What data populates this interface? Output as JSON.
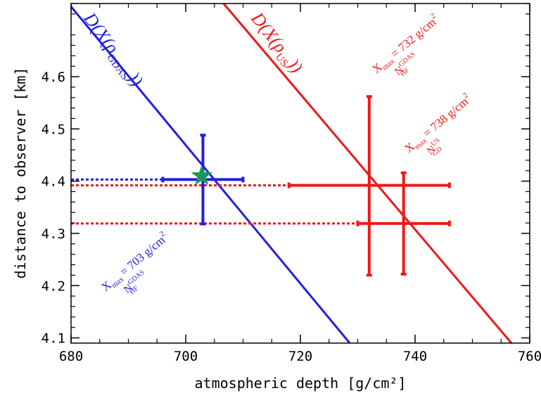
{
  "chart_data": {
    "type": "scatter",
    "title": "",
    "xlabel": "atmospheric depth [g/cm²]",
    "ylabel": "distance to observer [km]",
    "xlim": [
      680,
      760
    ],
    "ylim": [
      4.09,
      4.74
    ],
    "x_ticks": [
      680,
      700,
      720,
      740,
      760
    ],
    "x_tick_labels": [
      "680",
      "700",
      "720",
      "740",
      "760"
    ],
    "y_ticks": [
      4.1,
      4.2,
      4.3,
      4.4,
      4.5,
      4.6
    ],
    "y_tick_labels": [
      "4.1",
      "4.2",
      "4.3",
      "4.4",
      "4.5",
      "4.6"
    ],
    "grid": false,
    "colors": {
      "blue": "#2020e0",
      "red": "#f01818",
      "star": "#1a9a5a"
    },
    "lines": [
      {
        "name": "D(X(ρGDAS))",
        "color": "#2020e0",
        "x": [
          680,
          728.6
        ],
        "y": [
          4.734,
          4.09
        ]
      },
      {
        "name": "D(X(ρUS))",
        "color": "#f01818",
        "x": [
          706.6,
          756.8
        ],
        "y": [
          4.74,
          4.09
        ]
      }
    ],
    "series": [
      {
        "color": "#2020e0",
        "points": [
          {
            "x": 703,
            "y": 4.403,
            "xerr": [
              696,
              710
            ],
            "yerr": [
              4.318,
              4.488
            ]
          }
        ]
      },
      {
        "color": "#f01818",
        "points": [
          {
            "x": 732,
            "y": 4.392,
            "xerr": [
              718,
              746
            ],
            "yerr": [
              4.22,
              4.562
            ]
          },
          {
            "x": 738,
            "y": 4.319,
            "xerr": [
              730,
              746
            ],
            "yerr": [
              4.222,
              4.416
            ]
          }
        ]
      }
    ],
    "projections": [
      {
        "color": "#2020e0",
        "y": 4.403,
        "x_from": 680,
        "x_to": 696
      },
      {
        "color": "#f01818",
        "y": 4.392,
        "x_from": 680,
        "x_to": 718
      },
      {
        "color": "#f01818",
        "y": 4.319,
        "x_from": 680,
        "x_to": 730
      }
    ],
    "star": {
      "x": 702.8,
      "y": 4.41,
      "color": "#1a9a5a"
    },
    "annotations": {
      "line_blue": {
        "D": "D",
        "X": "X",
        "rho": "ρ",
        "sub": "GDAS"
      },
      "line_red": {
        "D": "D",
        "X": "X",
        "rho": "ρ",
        "sub": "US"
      },
      "xmax_label": "X",
      "xmax_sub": "max",
      "blue_value": "= 703 g/cm",
      "blue_N": "N",
      "blue_N_sup": "GDAS",
      "blue_N_sub": "HF",
      "red1_value": "= 732 g/cm",
      "red1_N": "N",
      "red1_N_sup": "GDAS",
      "red1_N_sub": "HF",
      "red2_value": "= 738 g/cm",
      "red2_N": "N",
      "red2_N_sup": "US",
      "red2_N_sub": "GD",
      "sq": "2"
    }
  }
}
